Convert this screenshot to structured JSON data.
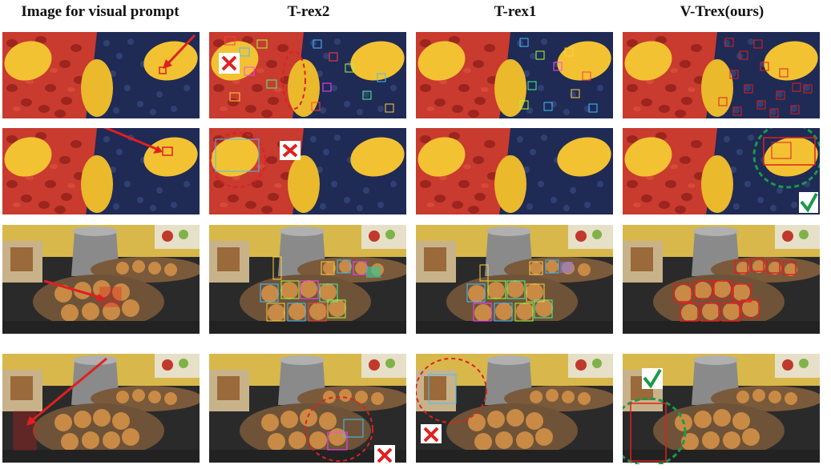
{
  "figure": {
    "columns": [
      {
        "key": "prompt",
        "label": "Image for visual prompt"
      },
      {
        "key": "trex2",
        "label": "T-rex2"
      },
      {
        "key": "trex1",
        "label": "T-rex1"
      },
      {
        "key": "vtrex",
        "label": "V-Trex(ours)"
      }
    ],
    "rows": [
      {
        "scene": "fruits",
        "target": "blueberry"
      },
      {
        "scene": "fruits",
        "target": "mango"
      },
      {
        "scene": "kitchen",
        "target": "bread roll"
      },
      {
        "scene": "kitchen",
        "target": "wall tile"
      }
    ]
  },
  "colors": {
    "red": "#e02020",
    "green": "#1a9a4a",
    "fruit_bg": "#c93a2f",
    "blueberry": "#1f2a55",
    "mango": "#f2c233",
    "stove": "#2a2a2a",
    "wall": "#d8b84a",
    "bread": "#c98a45"
  },
  "icons": [
    "arrow-icon",
    "cross-icon",
    "check-icon",
    "dashed-circle-icon"
  ]
}
